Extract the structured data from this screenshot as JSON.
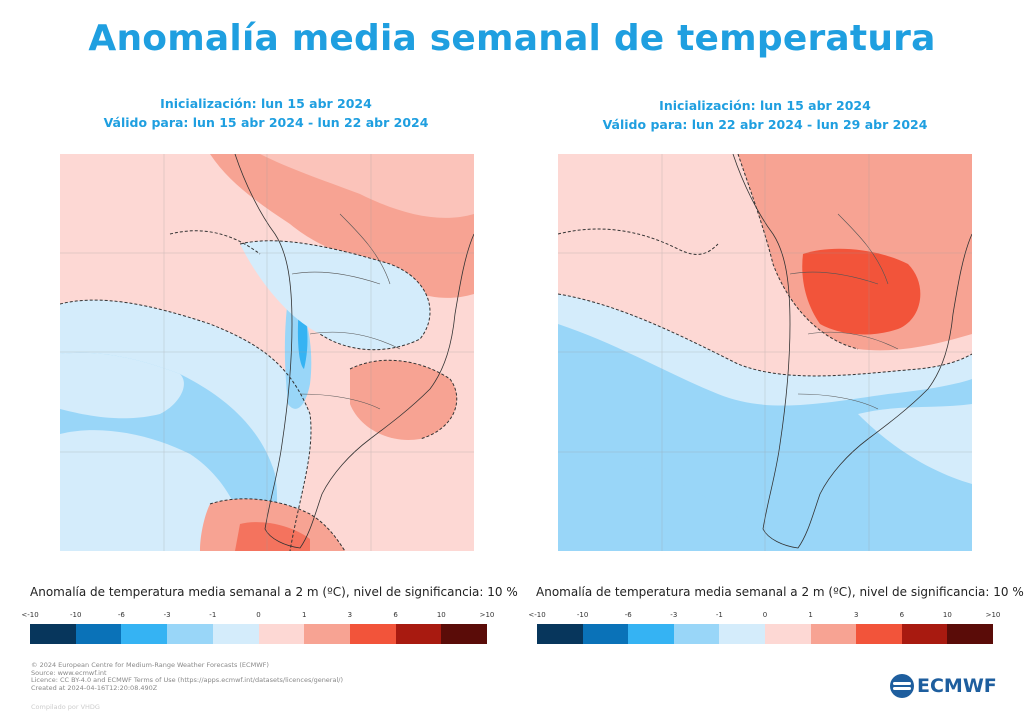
{
  "title": "Anomalía media semanal de temperatura",
  "panels": [
    {
      "init_line": "Inicialización: lun 15 abr 2024",
      "valid_line": "Válido para: lun 15 abr 2024 - lun 22 abr 2024",
      "caption": "Anomalía de temperatura media semanal a 2 m (ºC), nivel de significancia: 10 %"
    },
    {
      "init_line": "Inicialización: lun 15 abr 2024",
      "valid_line": "Válido para: lun 22 abr 2024 - lun 29 abr 2024",
      "caption": "Anomalía de temperatura media semanal a 2 m (ºC), nivel de significancia: 10 %"
    }
  ],
  "legend": {
    "labels": [
      "<-10",
      "-10",
      "-6",
      "-3",
      "-1",
      "0",
      "1",
      "3",
      "6",
      "10",
      ">10"
    ],
    "colors": [
      "#07365c",
      "#0a72b8",
      "#35b3f3",
      "#99d6f8",
      "#d4ecfb",
      "#fdd8d4",
      "#f7a393",
      "#f2543a",
      "#a81a10",
      "#5a0c08"
    ]
  },
  "footer": {
    "lines": [
      "© 2024 European Centre for Medium-Range Weather Forecasts (ECMWF)",
      "Source: www.ecmwf.int",
      "Licence: CC BY-4.0 and ECMWF Terms of Use (https://apps.ecmwf.int/datasets/licences/general/)",
      "Created at 2024-04-16T12:20:08.490Z"
    ],
    "compiled": "Compilado por VHDG",
    "logo_text": "ECMWF"
  }
}
